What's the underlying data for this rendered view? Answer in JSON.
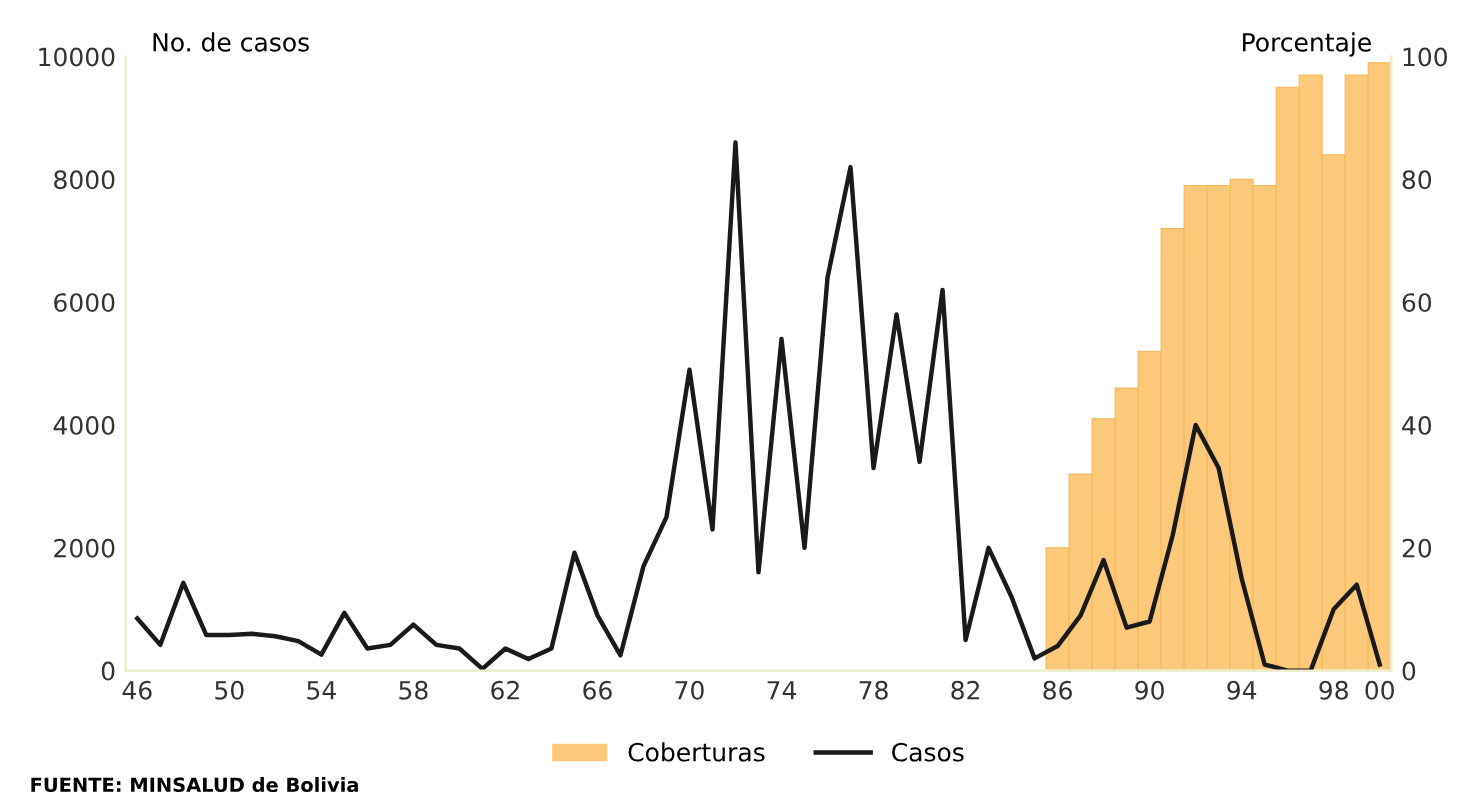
{
  "chart_data": {
    "type": "line",
    "ylabel": "No. de casos",
    "y2label": "Porcentaje",
    "categories": [
      "46",
      null,
      null,
      null,
      "50",
      null,
      null,
      null,
      "54",
      null,
      null,
      null,
      "58",
      null,
      null,
      null,
      "62",
      null,
      null,
      null,
      "66",
      null,
      null,
      null,
      "70",
      null,
      null,
      null,
      "74",
      null,
      null,
      null,
      "78",
      null,
      null,
      null,
      "82",
      null,
      null,
      null,
      "86",
      null,
      null,
      null,
      "90",
      null,
      null,
      null,
      "94",
      null,
      null,
      null,
      "98",
      null,
      "00"
    ],
    "series": [
      {
        "name": "Coberturas",
        "type": "bar",
        "axis": "y2",
        "color": "#fcc97a",
        "values": [
          null,
          null,
          null,
          null,
          null,
          null,
          null,
          null,
          null,
          null,
          null,
          null,
          null,
          null,
          null,
          null,
          null,
          null,
          null,
          null,
          null,
          null,
          null,
          null,
          null,
          null,
          null,
          null,
          null,
          null,
          null,
          null,
          null,
          null,
          null,
          null,
          null,
          null,
          null,
          null,
          20,
          32,
          41,
          46,
          52,
          72,
          79,
          79,
          80,
          79,
          95,
          97,
          84,
          97,
          99
        ]
      },
      {
        "name": "Casos",
        "color": "#1a1a1a",
        "values": [
          850,
          420,
          1430,
          580,
          580,
          600,
          560,
          480,
          260,
          940,
          360,
          420,
          750,
          420,
          360,
          30,
          360,
          190,
          360,
          1920,
          900,
          250,
          1700,
          2500,
          4900,
          2300,
          8600,
          1600,
          5400,
          2000,
          6400,
          8200,
          3300,
          5800,
          3400,
          6200,
          500,
          2000,
          1200,
          200,
          400,
          900,
          1800,
          700,
          800,
          2200,
          4000,
          3300,
          1500,
          100,
          0,
          0,
          1000,
          1400,
          100
        ]
      }
    ],
    "ylim": [
      0,
      10000
    ],
    "yticks": [
      0,
      2000,
      4000,
      6000,
      8000,
      10000
    ],
    "y2lim": [
      0,
      100
    ],
    "y2ticks": [
      0,
      20,
      40,
      60,
      80,
      100
    ],
    "grid": false,
    "legend": "bottom",
    "annotations": [
      "FUENTE: MINSALUD de Bolivia"
    ]
  }
}
